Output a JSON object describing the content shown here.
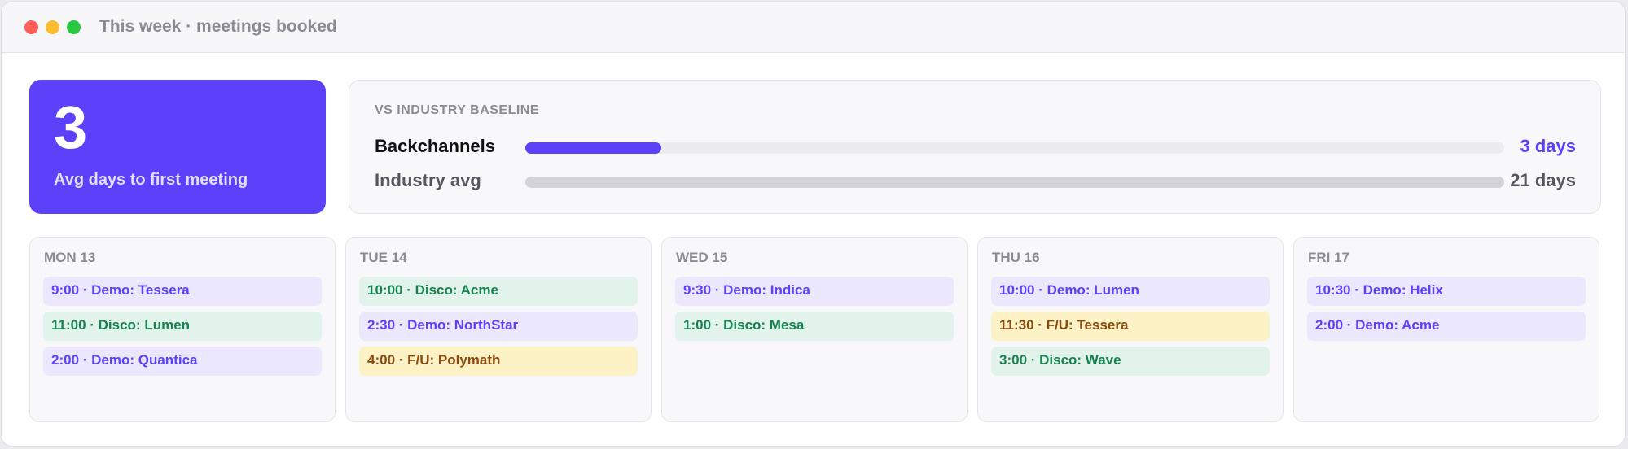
{
  "window": {
    "title": "This week · meetings booked"
  },
  "stat": {
    "value": "3",
    "label": "Avg days to first meeting"
  },
  "baseline": {
    "title": "VS INDUSTRY BASELINE",
    "rows": [
      {
        "label": "Backchannels",
        "value": "3 days",
        "fraction": 0.139
      },
      {
        "label": "Industry avg",
        "value": "21 days",
        "fraction": 1.0
      }
    ]
  },
  "days": [
    {
      "name": "MON 13",
      "events": [
        {
          "text": "9:00 · Demo: Tessera",
          "kind": "demo"
        },
        {
          "text": "11:00 · Disco: Lumen",
          "kind": "disco"
        },
        {
          "text": "2:00 · Demo: Quantica",
          "kind": "demo"
        }
      ]
    },
    {
      "name": "TUE 14",
      "events": [
        {
          "text": "10:00 · Disco: Acme",
          "kind": "disco"
        },
        {
          "text": "2:30 · Demo: NorthStar",
          "kind": "demo"
        },
        {
          "text": "4:00 · F/U: Polymath",
          "kind": "fu"
        }
      ]
    },
    {
      "name": "WED 15",
      "events": [
        {
          "text": "9:30 · Demo: Indica",
          "kind": "demo"
        },
        {
          "text": "1:00 · Disco: Mesa",
          "kind": "disco"
        }
      ]
    },
    {
      "name": "THU 16",
      "events": [
        {
          "text": "10:00 · Demo: Lumen",
          "kind": "demo"
        },
        {
          "text": "11:30 · F/U: Tessera",
          "kind": "fu"
        },
        {
          "text": "3:00 · Disco: Wave",
          "kind": "disco"
        }
      ]
    },
    {
      "name": "FRI 17",
      "events": [
        {
          "text": "10:30 · Demo: Helix",
          "kind": "demo"
        },
        {
          "text": "2:00 · Demo: Acme",
          "kind": "demo"
        }
      ]
    }
  ],
  "colors": {
    "accent": "#5b41fa",
    "demo_bg": "#ebe8fd",
    "disco_bg": "#e1f3ea",
    "disco_text": "#16834f",
    "fu_bg": "#fdf1c6",
    "fu_text": "#8a4a0b"
  }
}
